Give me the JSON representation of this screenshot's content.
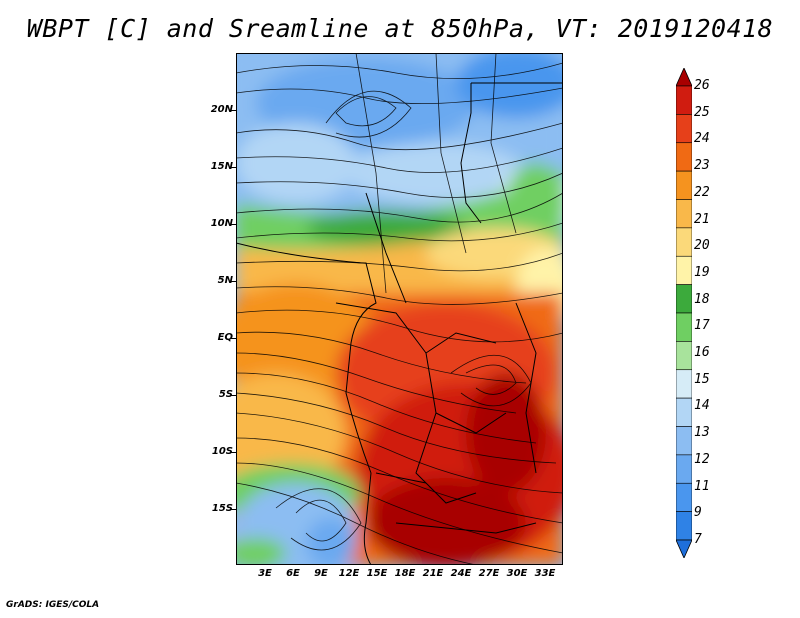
{
  "title": "WBPT [C] and Sreamline at 850hPa, VT: 2019120418",
  "y_labels": [
    "20N",
    "15N",
    "10N",
    "5N",
    "EQ",
    "5S",
    "10S",
    "15S"
  ],
  "x_labels": [
    "3E",
    "6E",
    "9E",
    "12E",
    "15E",
    "18E",
    "21E",
    "24E",
    "27E",
    "30E",
    "33E"
  ],
  "colorbar": {
    "labels": [
      "7",
      "9",
      "11",
      "12",
      "13",
      "14",
      "15",
      "16",
      "17",
      "18",
      "19",
      "20",
      "21",
      "22",
      "23",
      "24",
      "25",
      "26"
    ],
    "colors": [
      "#1e6fdb",
      "#2f82e6",
      "#4a96ee",
      "#6aa9f0",
      "#8cbdf2",
      "#b2d6f5",
      "#d6ecf7",
      "#a8e39c",
      "#6fcf62",
      "#3caa3c",
      "#fff3a8",
      "#fbd97a",
      "#f9b84a",
      "#f5931f",
      "#f06a14",
      "#e6401a",
      "#d01c10",
      "#a80000"
    ]
  },
  "credit": "GrADS: IGES/COLA"
}
